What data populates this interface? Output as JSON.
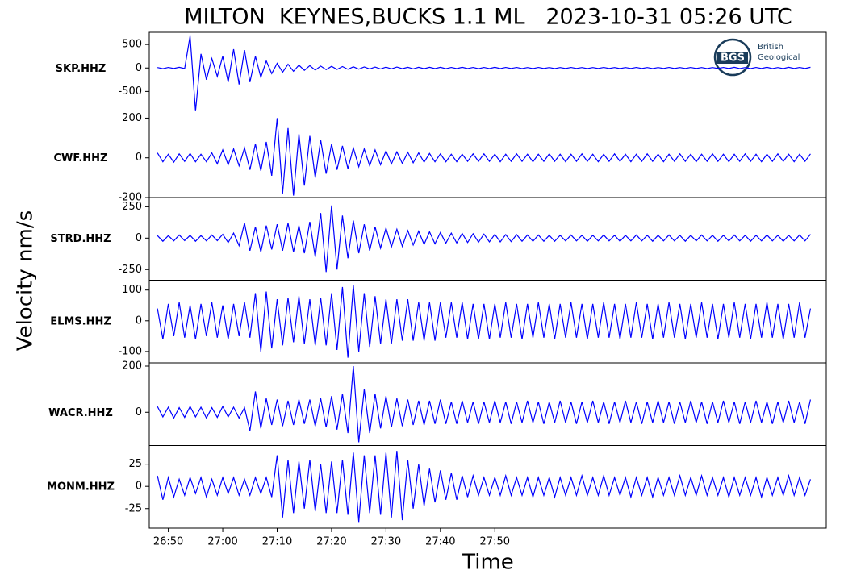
{
  "chart_data": {
    "type": "seismogram",
    "title": "MILTON  KEYNES,BUCKS 1.1 ML   2023-10-31 05:26 UTC",
    "ylabel": "Velocity nm/s",
    "xlabel": "Time",
    "xlim": [
      46.5,
      170.9
    ],
    "xticks": [
      {
        "value": 50,
        "label": "26:50"
      },
      {
        "value": 60,
        "label": "27:00"
      },
      {
        "value": 70,
        "label": "27:10"
      },
      {
        "value": 80,
        "label": "27:20"
      },
      {
        "value": 90,
        "label": "27:30"
      },
      {
        "value": 100,
        "label": "27:40"
      },
      {
        "value": 110,
        "label": "27:50"
      }
    ],
    "x": [
      48,
      49,
      50,
      51,
      52,
      53,
      54,
      55,
      56,
      57,
      58,
      59,
      60,
      61,
      62,
      63,
      64,
      65,
      66,
      67,
      68,
      69,
      70,
      71,
      72,
      73,
      74,
      75,
      76,
      77,
      78,
      79,
      80,
      81,
      82,
      83,
      84,
      85,
      86,
      87,
      88,
      89,
      90,
      91,
      92,
      93,
      94,
      95,
      96,
      97,
      98,
      99,
      100,
      101,
      102,
      103,
      104,
      105,
      106,
      107,
      108,
      109,
      110,
      111,
      112,
      113,
      114,
      115,
      116,
      117,
      118,
      119,
      120,
      121,
      122,
      123,
      124,
      125,
      126,
      127,
      128,
      129,
      130,
      131,
      132,
      133,
      134,
      135,
      136,
      137,
      138,
      139,
      140,
      141,
      142,
      143,
      144,
      145,
      146,
      147,
      148,
      149,
      150,
      151,
      152,
      153,
      154,
      155,
      156,
      157,
      158,
      159,
      160,
      161,
      162,
      163,
      164,
      165,
      166,
      167,
      168
    ],
    "series": [
      {
        "name": "SKP.HHZ",
        "color": "#0000ff",
        "ylim": [
          -1000,
          760
        ],
        "yticks": [
          500,
          0,
          -500
        ],
        "values": [
          10,
          -15,
          12,
          -10,
          15,
          -12,
          680,
          -920,
          300,
          -250,
          200,
          -180,
          250,
          -300,
          400,
          -350,
          380,
          -300,
          250,
          -200,
          150,
          -120,
          100,
          -90,
          80,
          -70,
          60,
          -50,
          50,
          -45,
          40,
          -35,
          35,
          -30,
          30,
          -28,
          25,
          -25,
          22,
          -20,
          20,
          -20,
          18,
          -18,
          20,
          -15,
          15,
          -18,
          15,
          -15,
          15,
          -12,
          15,
          -15,
          12,
          -12,
          15,
          -12,
          12,
          -15,
          12,
          -12,
          15,
          -12,
          12,
          -10,
          12,
          -12,
          10,
          -12,
          12,
          -10,
          10,
          -12,
          10,
          -10,
          12,
          -10,
          10,
          -12,
          10,
          -10,
          12,
          -10,
          10,
          -12,
          10,
          -10,
          12,
          -10,
          10,
          -12,
          10,
          -10,
          12,
          -10,
          10,
          -10,
          12,
          -10,
          10,
          -12,
          10,
          -10,
          12,
          -10,
          15,
          -12,
          10,
          -12,
          12,
          -10,
          15,
          -12,
          10,
          -12,
          15,
          -10,
          12,
          -10,
          15
        ]
      },
      {
        "name": "CWF.HHZ",
        "color": "#0000ff",
        "ylim": [
          -200,
          216
        ],
        "yticks": [
          200,
          0,
          -200
        ],
        "values": [
          25,
          -20,
          18,
          -22,
          20,
          -18,
          22,
          -20,
          18,
          -20,
          25,
          -30,
          40,
          -35,
          45,
          -40,
          50,
          -60,
          70,
          -65,
          80,
          -90,
          200,
          -180,
          150,
          -190,
          120,
          -140,
          110,
          -100,
          90,
          -80,
          70,
          -60,
          60,
          -55,
          50,
          -45,
          45,
          -40,
          40,
          -35,
          35,
          -30,
          30,
          -28,
          28,
          -25,
          25,
          -22,
          22,
          -20,
          20,
          -20,
          18,
          -20,
          18,
          -18,
          20,
          -18,
          20,
          -18,
          18,
          -20,
          18,
          -18,
          20,
          -18,
          18,
          -20,
          18,
          -18,
          20,
          -18,
          18,
          -20,
          18,
          -18,
          20,
          -18,
          18,
          -20,
          18,
          -18,
          20,
          -18,
          18,
          -20,
          18,
          -18,
          20,
          -18,
          18,
          -20,
          18,
          -18,
          20,
          -18,
          18,
          -20,
          18,
          -18,
          20,
          -18,
          18,
          -20,
          18,
          -18,
          20,
          -18,
          18,
          -20,
          18,
          -18,
          20,
          -18,
          18,
          -20,
          18,
          -18,
          20
        ]
      },
      {
        "name": "STRD.HHZ",
        "color": "#0000ff",
        "ylim": [
          -335,
          323
        ],
        "yticks": [
          250,
          0,
          -250
        ],
        "values": [
          20,
          -25,
          20,
          -22,
          25,
          -20,
          22,
          -25,
          20,
          -22,
          25,
          -20,
          30,
          -35,
          40,
          -60,
          120,
          -100,
          90,
          -110,
          100,
          -90,
          110,
          -100,
          120,
          -110,
          100,
          -120,
          130,
          -150,
          200,
          -270,
          260,
          -250,
          180,
          -160,
          140,
          -120,
          110,
          -100,
          90,
          -80,
          80,
          -70,
          70,
          -65,
          60,
          -55,
          55,
          -50,
          50,
          -45,
          45,
          -40,
          40,
          -38,
          38,
          -35,
          35,
          -32,
          32,
          -30,
          30,
          -30,
          28,
          -28,
          28,
          -25,
          25,
          -25,
          25,
          -25,
          22,
          -25,
          22,
          -22,
          25,
          -22,
          22,
          -25,
          22,
          -22,
          25,
          -22,
          22,
          -25,
          22,
          -22,
          25,
          -22,
          22,
          -25,
          22,
          -22,
          25,
          -22,
          22,
          -25,
          22,
          -22,
          25,
          -22,
          22,
          -25,
          22,
          -22,
          25,
          -22,
          22,
          -25,
          22,
          -22,
          25,
          -22,
          22,
          -25,
          22,
          -22,
          25,
          -22,
          30
        ]
      },
      {
        "name": "ELMS.HHZ",
        "color": "#0000ff",
        "ylim": [
          -137,
          132
        ],
        "yticks": [
          100,
          0,
          -100
        ],
        "values": [
          40,
          -60,
          55,
          -50,
          60,
          -55,
          50,
          -60,
          55,
          -50,
          60,
          -55,
          50,
          -60,
          55,
          -50,
          60,
          -55,
          90,
          -100,
          95,
          -90,
          70,
          -80,
          75,
          -70,
          80,
          -75,
          70,
          -80,
          75,
          -80,
          90,
          -95,
          110,
          -120,
          115,
          -100,
          90,
          -85,
          80,
          -75,
          70,
          -75,
          70,
          -65,
          70,
          -65,
          60,
          -65,
          60,
          -65,
          60,
          -55,
          60,
          -55,
          60,
          -60,
          55,
          -60,
          55,
          -60,
          55,
          -55,
          60,
          -55,
          55,
          -60,
          55,
          -55,
          60,
          -55,
          55,
          -60,
          55,
          -55,
          60,
          -55,
          55,
          -60,
          55,
          -55,
          60,
          -55,
          55,
          -60,
          55,
          -55,
          60,
          -55,
          55,
          -60,
          55,
          -55,
          60,
          -55,
          55,
          -60,
          55,
          -55,
          60,
          -55,
          55,
          -60,
          55,
          -55,
          60,
          -55,
          55,
          -60,
          55,
          -55,
          60,
          -55,
          55,
          -60,
          55,
          -55,
          60,
          -55,
          40
        ]
      },
      {
        "name": "WACR.HHZ",
        "color": "#0000ff",
        "ylim": [
          -144,
          214
        ],
        "yticks": [
          200,
          0
        ],
        "values": [
          25,
          -20,
          22,
          -25,
          20,
          -22,
          25,
          -20,
          22,
          -25,
          20,
          -22,
          25,
          -20,
          22,
          -25,
          20,
          -80,
          90,
          -70,
          60,
          -55,
          55,
          -60,
          50,
          -55,
          55,
          -50,
          55,
          -60,
          60,
          -65,
          70,
          -75,
          80,
          -90,
          200,
          -130,
          100,
          -90,
          80,
          -70,
          70,
          -65,
          60,
          -60,
          55,
          -55,
          50,
          -55,
          50,
          -50,
          55,
          -50,
          45,
          -50,
          50,
          -45,
          45,
          -50,
          45,
          -45,
          50,
          -45,
          45,
          -50,
          45,
          -45,
          50,
          -45,
          45,
          -50,
          45,
          -45,
          50,
          -45,
          45,
          -50,
          45,
          -45,
          50,
          -45,
          45,
          -50,
          45,
          -45,
          50,
          -45,
          45,
          -50,
          45,
          -45,
          50,
          -45,
          45,
          -50,
          45,
          -45,
          50,
          -45,
          45,
          -50,
          45,
          -45,
          50,
          -45,
          45,
          -50,
          45,
          -45,
          50,
          -45,
          45,
          -50,
          45,
          -45,
          50,
          -45,
          45,
          -50,
          55
        ]
      },
      {
        "name": "MONM.HHZ",
        "color": "#0000ff",
        "ylim": [
          -47,
          46
        ],
        "yticks": [
          25,
          0,
          -25
        ],
        "values": [
          12,
          -15,
          10,
          -12,
          8,
          -10,
          10,
          -8,
          10,
          -12,
          8,
          -10,
          10,
          -8,
          10,
          -10,
          8,
          -10,
          10,
          -8,
          10,
          -12,
          35,
          -35,
          30,
          -30,
          28,
          -25,
          30,
          -28,
          25,
          -30,
          28,
          -30,
          30,
          -32,
          38,
          -40,
          35,
          -30,
          35,
          -32,
          38,
          -35,
          40,
          -38,
          30,
          -25,
          25,
          -22,
          20,
          -18,
          18,
          -15,
          15,
          -15,
          12,
          -12,
          12,
          -10,
          10,
          -10,
          10,
          -10,
          12,
          -10,
          10,
          -10,
          10,
          -12,
          10,
          -10,
          10,
          -12,
          10,
          -10,
          10,
          -10,
          12,
          -10,
          10,
          -10,
          12,
          -10,
          10,
          -10,
          10,
          -12,
          10,
          -10,
          10,
          -12,
          10,
          -10,
          10,
          -10,
          12,
          -10,
          10,
          -10,
          12,
          -10,
          10,
          -10,
          10,
          -12,
          10,
          -10,
          10,
          -10,
          10,
          -12,
          10,
          -10,
          10,
          -10,
          12,
          -10,
          10,
          -10,
          8
        ]
      }
    ]
  },
  "logo": {
    "mark": "BGS",
    "line1": "British",
    "line2": "Geological"
  }
}
